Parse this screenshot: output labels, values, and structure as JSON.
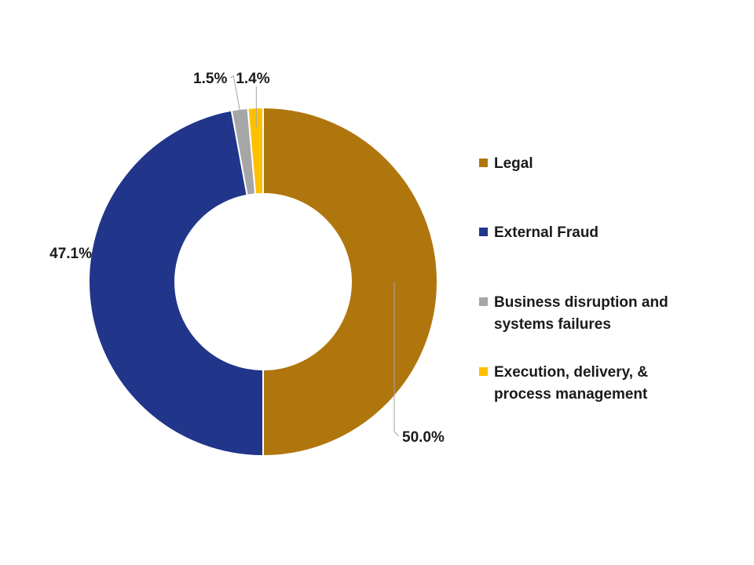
{
  "chart_data": {
    "type": "pie",
    "variant": "donut",
    "labels": [
      "Legal",
      "External Fraud",
      "Business disruption and systems failures",
      "Execution, delivery, & process management"
    ],
    "values": [
      50.0,
      47.1,
      1.5,
      1.4
    ],
    "data_labels": [
      "50.0%",
      "47.1%",
      "1.5%",
      "1.4%"
    ],
    "colors": [
      "#B0760E",
      "#21358A",
      "#A6A6A6",
      "#FFC000"
    ],
    "legend_position": "right",
    "title": ""
  }
}
